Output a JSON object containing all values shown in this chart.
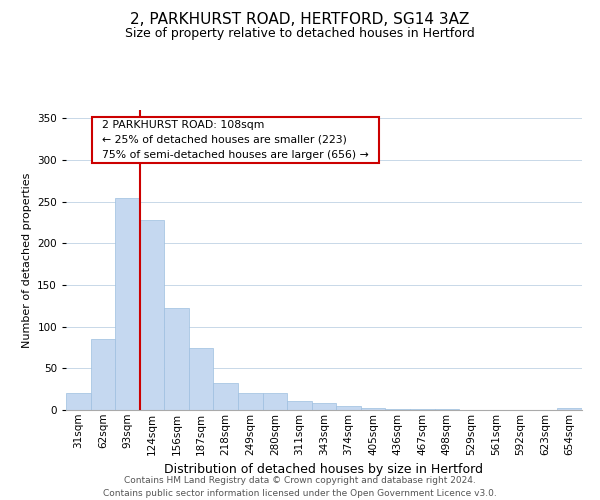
{
  "title": "2, PARKHURST ROAD, HERTFORD, SG14 3AZ",
  "subtitle": "Size of property relative to detached houses in Hertford",
  "xlabel": "Distribution of detached houses by size in Hertford",
  "ylabel": "Number of detached properties",
  "bar_labels": [
    "31sqm",
    "62sqm",
    "93sqm",
    "124sqm",
    "156sqm",
    "187sqm",
    "218sqm",
    "249sqm",
    "280sqm",
    "311sqm",
    "343sqm",
    "374sqm",
    "405sqm",
    "436sqm",
    "467sqm",
    "498sqm",
    "529sqm",
    "561sqm",
    "592sqm",
    "623sqm",
    "654sqm"
  ],
  "bar_values": [
    20,
    85,
    255,
    228,
    122,
    75,
    33,
    20,
    20,
    11,
    9,
    5,
    3,
    1,
    1,
    1,
    0,
    0,
    0,
    0,
    2
  ],
  "bar_color": "#c5d8f0",
  "bar_edge_color": "#9dbfe0",
  "vline_x_idx": 2,
  "vline_color": "#cc0000",
  "annotation_title": "2 PARKHURST ROAD: 108sqm",
  "annotation_line1": "← 25% of detached houses are smaller (223)",
  "annotation_line2": "75% of semi-detached houses are larger (656) →",
  "annotation_box_facecolor": "#ffffff",
  "annotation_box_edgecolor": "#cc0000",
  "ylim": [
    0,
    360
  ],
  "yticks": [
    0,
    50,
    100,
    150,
    200,
    250,
    300,
    350
  ],
  "footer1": "Contains HM Land Registry data © Crown copyright and database right 2024.",
  "footer2": "Contains public sector information licensed under the Open Government Licence v3.0.",
  "bg_color": "#ffffff",
  "grid_color": "#c8d8e8",
  "title_fontsize": 11,
  "subtitle_fontsize": 9,
  "ylabel_fontsize": 8,
  "xlabel_fontsize": 9,
  "tick_fontsize": 7.5,
  "footer_fontsize": 6.5
}
